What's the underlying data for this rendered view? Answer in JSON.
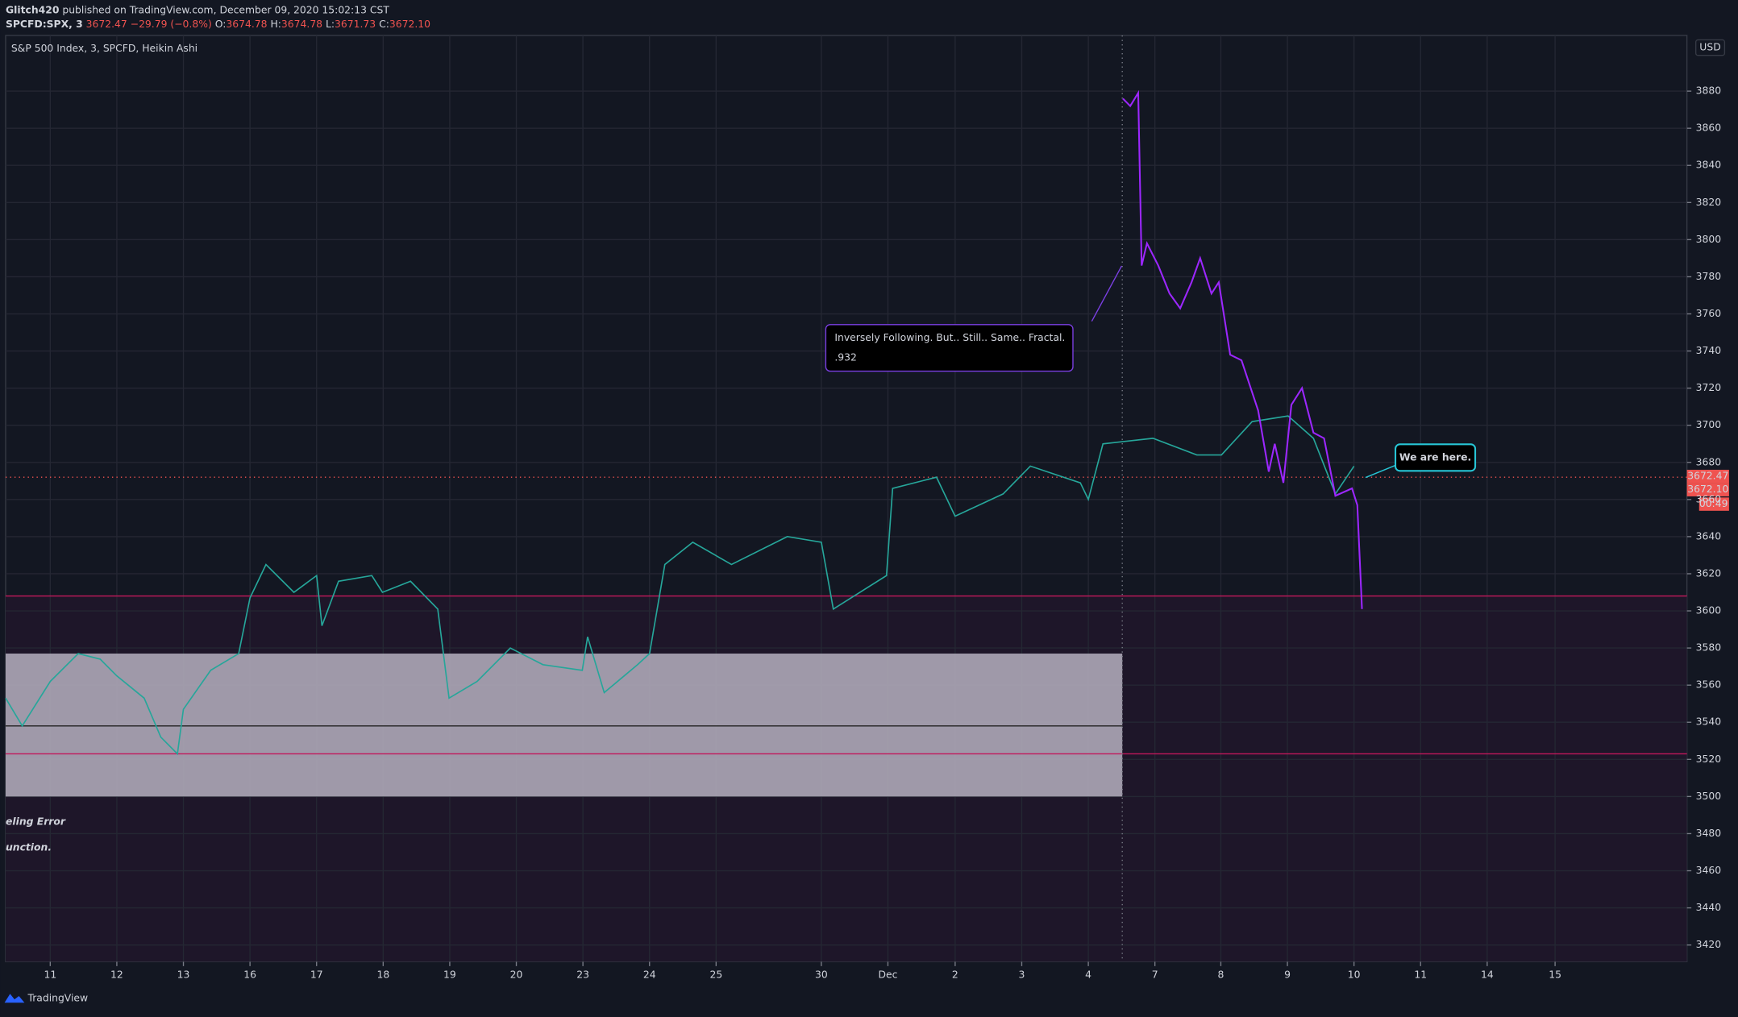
{
  "header": {
    "author": "Glitch420",
    "published": "published on TradingView.com, December 09, 2020 15:02:13 CST",
    "symbol": "SPCFD:SPX, 3",
    "last": "3672.47",
    "change": "−29.79 (−0.8%)",
    "o_label": "O:",
    "open": "3674.78",
    "h_label": "H:",
    "high": "3674.78",
    "l_label": "L:",
    "low": "3671.73",
    "c_label": "C:",
    "close": "3672.10"
  },
  "chart_data": {
    "type": "line",
    "title": "S&P 500 Index, 3, SPCFD, Heikin Ashi",
    "currency": "USD",
    "grid": true,
    "xlim": [
      -0.67,
      24.58
    ],
    "ylim": [
      3411,
      3910
    ],
    "xticks": [
      {
        "value": 0,
        "label": "11"
      },
      {
        "value": 1,
        "label": "12"
      },
      {
        "value": 2,
        "label": "13"
      },
      {
        "value": 3,
        "label": "16"
      },
      {
        "value": 4,
        "label": "17"
      },
      {
        "value": 5,
        "label": "18"
      },
      {
        "value": 6,
        "label": "19"
      },
      {
        "value": 7,
        "label": "20"
      },
      {
        "value": 8,
        "label": "23"
      },
      {
        "value": 9,
        "label": "24"
      },
      {
        "value": 10,
        "label": "25"
      },
      {
        "value": 11.58,
        "label": "30"
      },
      {
        "value": 12.58,
        "label": "Dec"
      },
      {
        "value": 13.59,
        "label": "2"
      },
      {
        "value": 14.59,
        "label": "3"
      },
      {
        "value": 15.59,
        "label": "4"
      },
      {
        "value": 16.59,
        "label": "7"
      },
      {
        "value": 17.58,
        "label": "8"
      },
      {
        "value": 18.58,
        "label": "9"
      },
      {
        "value": 19.58,
        "label": "10"
      },
      {
        "value": 20.58,
        "label": "11"
      },
      {
        "value": 21.58,
        "label": "14"
      },
      {
        "value": 22.6,
        "label": "15"
      }
    ],
    "yticks": [
      3420,
      3440,
      3460,
      3480,
      3500,
      3520,
      3540,
      3560,
      3580,
      3600,
      3620,
      3640,
      3660,
      3680,
      3700,
      3720,
      3740,
      3760,
      3780,
      3800,
      3820,
      3840,
      3860,
      3880
    ],
    "series": [
      {
        "name": "SPX",
        "color": "#26a69a",
        "x": [
          -0.67,
          -0.42,
          0,
          0.42,
          0.75,
          1.0,
          1.41,
          1.66,
          1.91,
          2.0,
          2.41,
          2.83,
          3.0,
          3.24,
          3.66,
          4.0,
          4.08,
          4.33,
          4.83,
          4.99,
          5.41,
          5.82,
          5.99,
          6.41,
          6.91,
          7.4,
          7.99,
          8.07,
          8.32,
          8.82,
          9.0,
          9.23,
          9.65,
          10.23,
          11.07,
          11.58,
          11.76,
          12.56,
          12.65,
          13.31,
          13.59,
          14.31,
          14.72,
          15.47,
          15.59,
          15.81,
          16.56,
          17.22,
          17.59,
          18.05,
          18.59,
          18.97,
          19.3,
          19.58
        ],
        "values": [
          3553,
          3538,
          3562,
          3577,
          3574,
          3565,
          3553,
          3532,
          3523,
          3547,
          3568,
          3577,
          3607,
          3625,
          3610,
          3619,
          3592,
          3616,
          3619,
          3610,
          3616,
          3601,
          3553,
          3562,
          3580,
          3571,
          3568,
          3586,
          3556,
          3571,
          3577,
          3625,
          3637,
          3625,
          3640,
          3637,
          3601,
          3619,
          3666,
          3672,
          3651,
          3663,
          3678,
          3669,
          3660,
          3690,
          3693,
          3684,
          3684,
          3702,
          3705,
          3693,
          3663,
          3678
        ]
      },
      {
        "name": "Fractal",
        "color": "#9c27ff",
        "x": [
          16.11,
          16.22,
          16.34,
          16.39,
          16.47,
          16.64,
          16.81,
          16.97,
          17.14,
          17.27,
          17.44,
          17.55,
          17.72,
          17.89,
          18.14,
          18.3,
          18.39,
          18.52,
          18.64,
          18.8,
          18.97,
          19.13,
          19.3,
          19.55,
          19.63,
          19.7
        ],
        "values": [
          3876,
          3872,
          3879,
          3786,
          3798,
          3786,
          3771,
          3763,
          3777,
          3790,
          3771,
          3777,
          3738,
          3735,
          3708,
          3675,
          3690,
          3669,
          3711,
          3720,
          3696,
          3693,
          3662,
          3666,
          3657,
          3601
        ]
      }
    ],
    "levels": [
      3608,
      3523,
      3538,
      3672
    ],
    "zone": [
      3500,
      3577
    ],
    "zone_end": 16.1,
    "annotations": [
      "Inversely Following. But.. Still.. Same.. Fractal.",
      ".932",
      "We are here.",
      "eling Error",
      "unction."
    ],
    "price_labels": [
      "3672.47",
      "3672.10",
      "00:49"
    ],
    "footer": "TradingView"
  }
}
